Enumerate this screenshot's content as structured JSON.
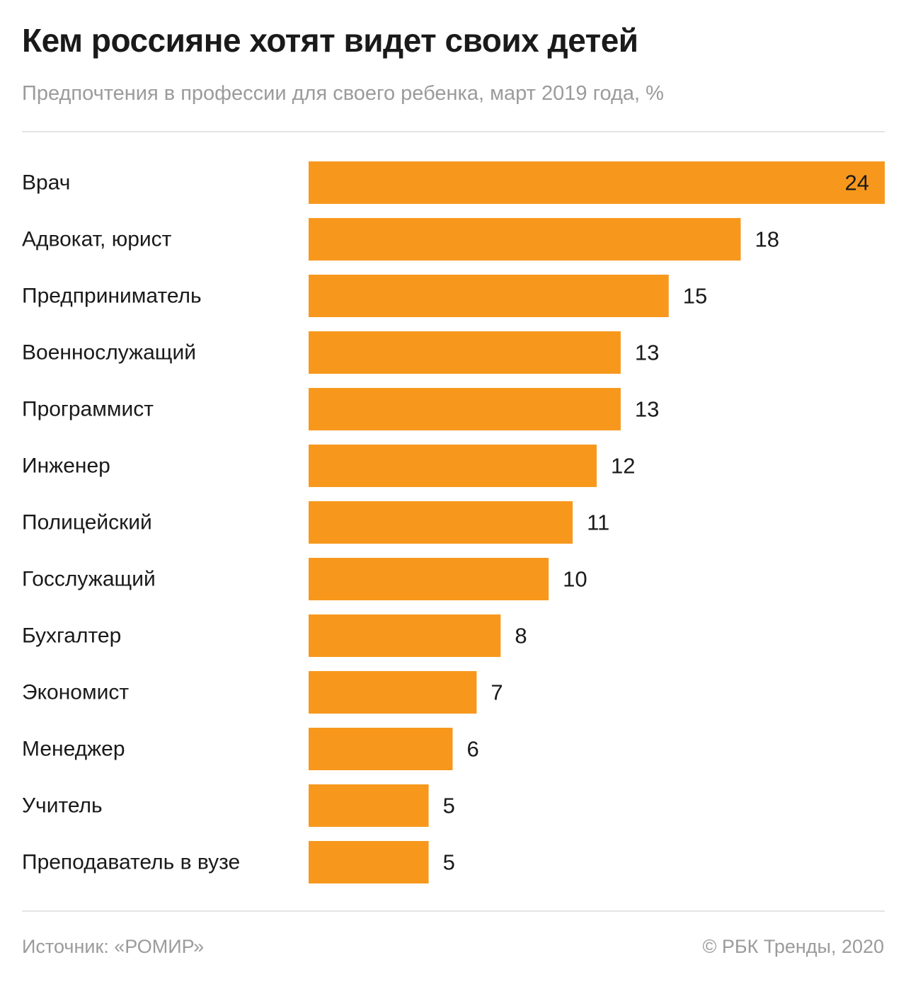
{
  "header": {
    "title": "Кем россияне хотят видет своих детей",
    "subtitle": "Предпочтения в профессии для своего ребенка, март 2019 года, %"
  },
  "footer": {
    "source": "Источник: «РОМИР»",
    "copyright": "© РБК Тренды, 2020"
  },
  "colors": {
    "bar": "#F7981D",
    "text": "#1a1a1a",
    "muted": "#9b9b9b"
  },
  "chart_data": {
    "type": "bar",
    "orientation": "horizontal",
    "title": "Кем россияне хотят видет своих детей",
    "subtitle": "Предпочтения в профессии для своего ребенка, март 2019 года, %",
    "xlabel": "",
    "ylabel": "",
    "xlim": [
      0,
      24
    ],
    "grid": false,
    "categories": [
      "Врач",
      "Адвокат, юрист",
      "Предприниматель",
      "Военнослужащий",
      "Программист",
      "Инженер",
      "Полицейский",
      "Госслужащий",
      "Бухгалтер",
      "Экономист",
      "Менеджер",
      "Учитель",
      "Преподаватель в вузе"
    ],
    "values": [
      24,
      18,
      15,
      13,
      13,
      12,
      11,
      10,
      8,
      7,
      6,
      5,
      5
    ]
  }
}
